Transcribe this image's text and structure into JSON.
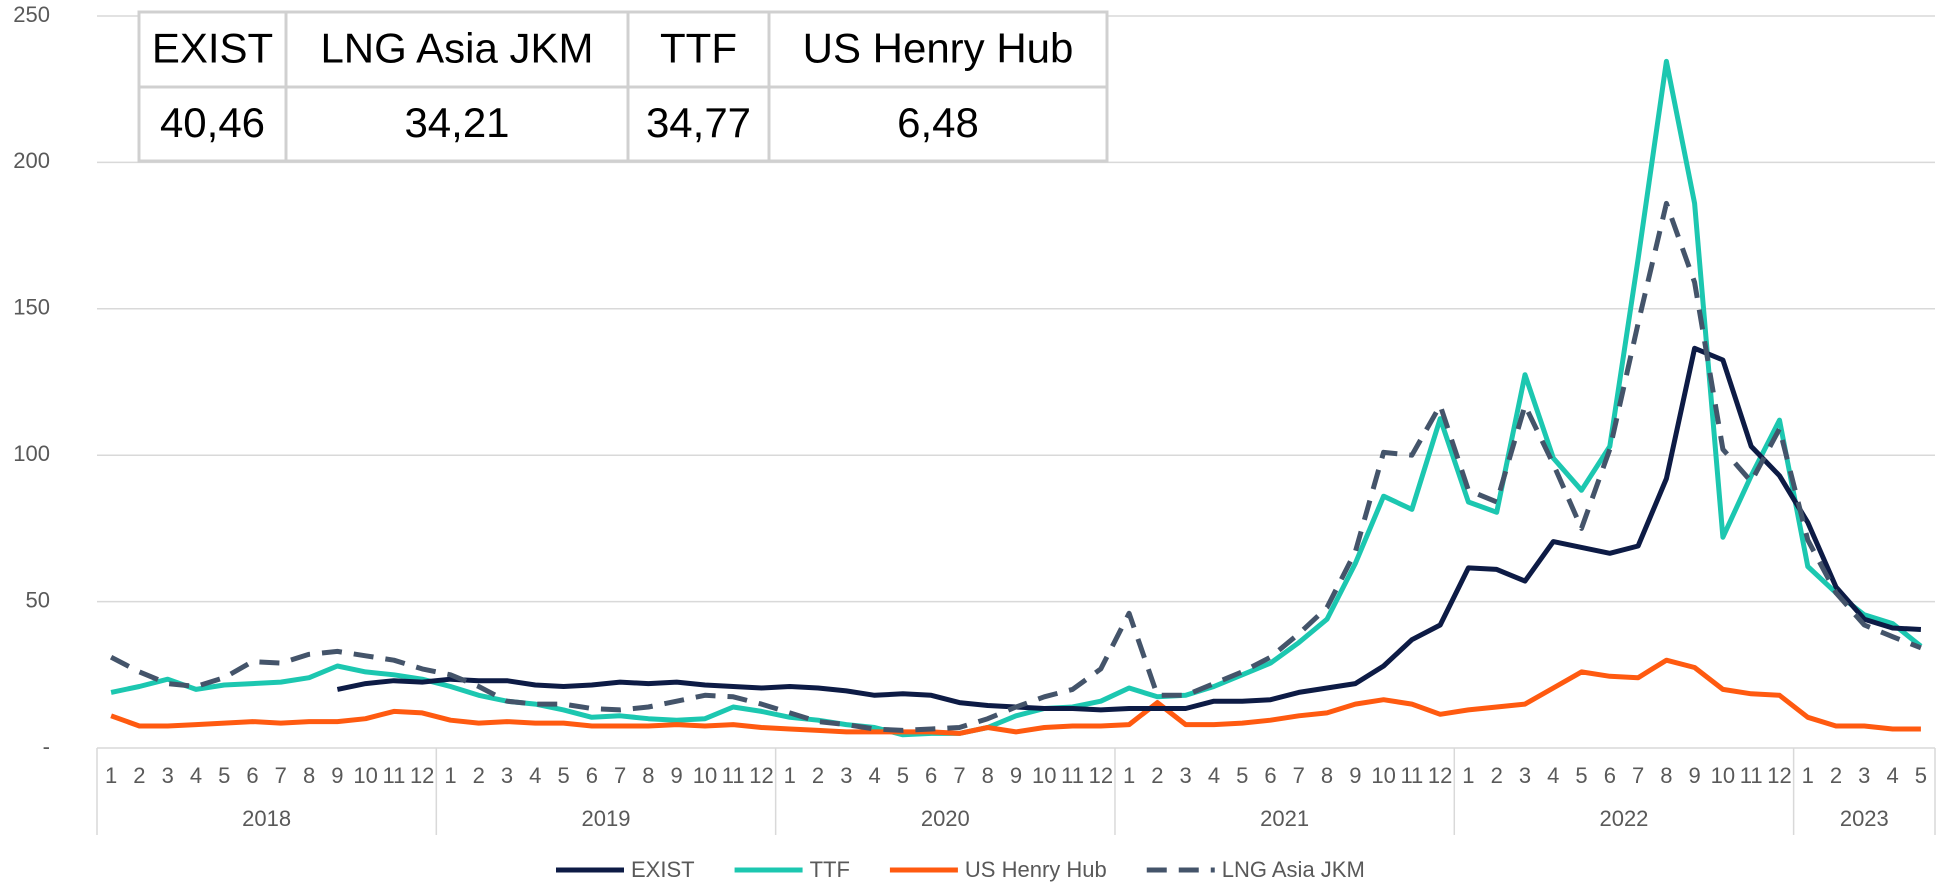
{
  "chart_data": {
    "type": "line",
    "categories": [
      "1",
      "2",
      "3",
      "4",
      "5",
      "6",
      "7",
      "8",
      "9",
      "10",
      "11",
      "12",
      "1",
      "2",
      "3",
      "4",
      "5",
      "6",
      "7",
      "8",
      "9",
      "10",
      "11",
      "12",
      "1",
      "2",
      "3",
      "4",
      "5",
      "6",
      "7",
      "8",
      "9",
      "10",
      "11",
      "12",
      "1",
      "2",
      "3",
      "4",
      "5",
      "6",
      "7",
      "8",
      "9",
      "10",
      "11",
      "12",
      "1",
      "2",
      "3",
      "4",
      "5",
      "6",
      "7",
      "8",
      "9",
      "10",
      "11",
      "12",
      "1",
      "2",
      "3",
      "4",
      "5"
    ],
    "years": [
      "2018",
      "2019",
      "2020",
      "2021",
      "2022",
      "2023"
    ],
    "ylim": [
      0,
      250
    ],
    "yticks": [
      {
        "value": 0,
        "label": "-"
      },
      50,
      100,
      150,
      200,
      250
    ],
    "grid": true,
    "legend": "bottom",
    "series": [
      {
        "name": "EXIST",
        "color": "#0d1b45",
        "dashed": false,
        "values": [
          null,
          null,
          null,
          null,
          null,
          null,
          null,
          null,
          20,
          22,
          23,
          22.5,
          23.5,
          23,
          23,
          21.5,
          21,
          21.5,
          22.5,
          22,
          22.5,
          21.5,
          21,
          20.5,
          21,
          20.5,
          19.5,
          18,
          18.5,
          18,
          15.5,
          14.5,
          14,
          13.5,
          13.5,
          13,
          13.5,
          13.5,
          13.5,
          16,
          16,
          16.5,
          19,
          20.5,
          22,
          28,
          37,
          42,
          61.5,
          61,
          57,
          70.5,
          68.5,
          66.5,
          69,
          92,
          136.5,
          132.5,
          103,
          93,
          77,
          55,
          44,
          41,
          40.46
        ]
      },
      {
        "name": "TTF",
        "color": "#1cc7b0",
        "dashed": false,
        "values": [
          19,
          21,
          23.5,
          20,
          21.5,
          22,
          22.5,
          24,
          28,
          26,
          25,
          23.5,
          21,
          18,
          16,
          15,
          13,
          10.5,
          11,
          10,
          9.5,
          10,
          14,
          12.5,
          10.5,
          9.5,
          8,
          7,
          4.5,
          5,
          5,
          7,
          11,
          13.5,
          14,
          16,
          20.5,
          17.5,
          18,
          21,
          25,
          29,
          36,
          44,
          63,
          86,
          81.5,
          112.5,
          84,
          80.5,
          127.5,
          99,
          88,
          103,
          167,
          234.5,
          186,
          72,
          93,
          112,
          62,
          53,
          45.5,
          42.5,
          34.77
        ]
      },
      {
        "name": "US Henry Hub",
        "color": "#ff5a10",
        "dashed": false,
        "values": [
          11,
          7.5,
          7.5,
          8,
          8.5,
          9,
          8.5,
          9,
          9,
          10,
          12.5,
          12,
          9.5,
          8.5,
          9,
          8.5,
          8.5,
          7.5,
          7.5,
          7.5,
          8,
          7.5,
          8,
          7,
          6.5,
          6,
          5.5,
          5.5,
          5.5,
          5.5,
          5,
          7,
          5.5,
          7,
          7.5,
          7.5,
          8,
          15.5,
          8,
          8,
          8.5,
          9.5,
          11,
          12,
          15,
          16.5,
          15,
          11.5,
          13,
          14,
          15,
          20.5,
          26,
          24.5,
          24,
          30,
          27.5,
          20,
          18.5,
          18,
          10.5,
          7.5,
          7.5,
          6.5,
          6.48
        ]
      },
      {
        "name": "LNG Asia JKM",
        "color": "#44546a",
        "dashed": true,
        "values": [
          31,
          26,
          22,
          21,
          24,
          29.5,
          29,
          32,
          33,
          31.5,
          30,
          27,
          25,
          21,
          16,
          15,
          15,
          13.5,
          13,
          14,
          16,
          18,
          17.5,
          15,
          12,
          9,
          8,
          6.5,
          6,
          6.5,
          7,
          10,
          14,
          17.5,
          20,
          27,
          46,
          18,
          18,
          22,
          26,
          31,
          39,
          48,
          67,
          101,
          100,
          117,
          88,
          84,
          117,
          97,
          75,
          102,
          145,
          186,
          159,
          102,
          91,
          109,
          71,
          53,
          42,
          38,
          34.21
        ]
      }
    ],
    "table": {
      "headers": [
        "EXIST",
        "LNG Asia JKM",
        "TTF",
        "US Henry Hub"
      ],
      "values": [
        "40,46",
        "34,21",
        "34,77",
        "6,48"
      ]
    }
  }
}
